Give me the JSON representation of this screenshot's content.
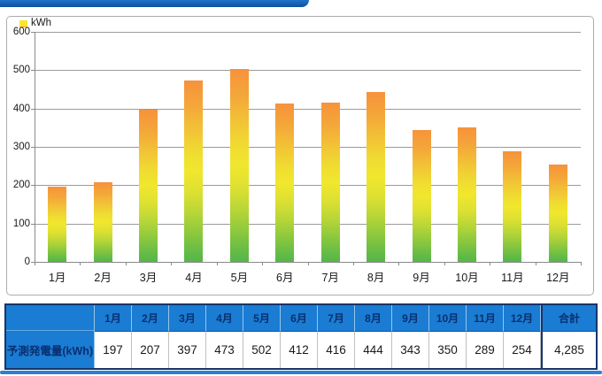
{
  "chart_data": {
    "type": "bar",
    "title": "",
    "ylabel": "kWh",
    "xlabel": "",
    "categories": [
      "1月",
      "2月",
      "3月",
      "4月",
      "5月",
      "6月",
      "7月",
      "8月",
      "9月",
      "10月",
      "11月",
      "12月"
    ],
    "values": [
      197,
      207,
      397,
      473,
      502,
      412,
      416,
      444,
      343,
      350,
      289,
      254
    ],
    "ylim": [
      0,
      600
    ],
    "yticks": [
      0,
      100,
      200,
      300,
      400,
      500,
      600
    ],
    "grid": true,
    "legend": "none",
    "bar_gradient": [
      "#F6923C",
      "#F1E72E",
      "#58B647"
    ]
  },
  "table": {
    "row_header": "予測発電量(kWh)",
    "columns": [
      "1月",
      "2月",
      "3月",
      "4月",
      "5月",
      "6月",
      "7月",
      "8月",
      "9月",
      "10月",
      "11月",
      "12月",
      "合計"
    ],
    "values": [
      "197",
      "207",
      "397",
      "473",
      "502",
      "412",
      "416",
      "444",
      "343",
      "350",
      "289",
      "254",
      "4,285"
    ]
  },
  "colors": {
    "table_header_bg": "#1A7CD2",
    "table_header_text": "#0A2F70",
    "table_border": "#17356B",
    "banner_blue": "#0E4FA0",
    "bottom_rule_blue": "#2E7FD0",
    "grid_gray": "#9B9B9B",
    "bar_top_orange": "#F6923C",
    "bar_mid_yellow": "#F1E72E",
    "bar_bottom_green": "#58B647",
    "marker_yellow": "#F9E62F"
  }
}
